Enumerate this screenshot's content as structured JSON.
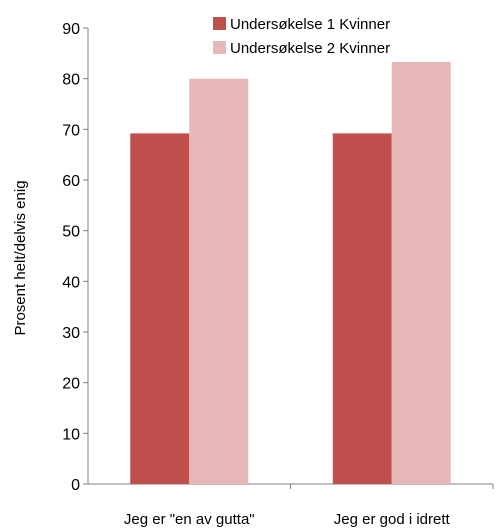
{
  "chart_data": {
    "type": "bar",
    "ylabel": "Prosent helt/delvis enig",
    "xlabel": "",
    "title": "",
    "categories": [
      "Jeg er \"en av gutta\"",
      "Jeg er god i idrett"
    ],
    "series": [
      {
        "name": "Undersøkelse 1  Kvinner",
        "values": [
          69.2,
          69.2
        ],
        "color": "#c0504d"
      },
      {
        "name": "Undersøkelse 2  Kvinner",
        "values": [
          80.0,
          83.3
        ],
        "color": "#e6b9b8"
      }
    ],
    "ylim": [
      0,
      90
    ],
    "yticks": [
      "0",
      "10",
      "20",
      "30",
      "40",
      "50",
      "60",
      "70",
      "80",
      "90"
    ],
    "grid": false,
    "legend_position": "top-right"
  }
}
